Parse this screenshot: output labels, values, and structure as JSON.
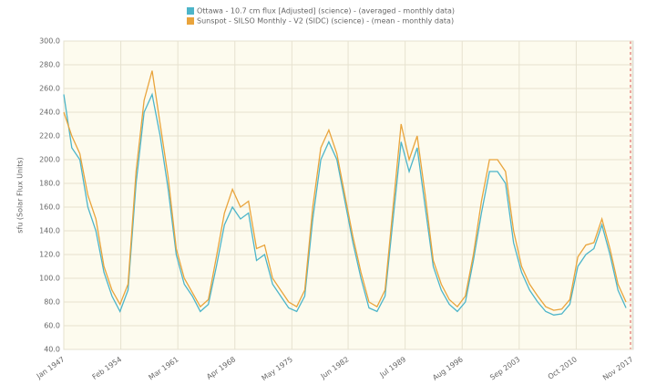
{
  "chart_data": {
    "type": "line",
    "legend_position": "top",
    "ylabel": "sfu (Solar Flux Units)",
    "x": [
      1947,
      1948,
      1949,
      1950,
      1951,
      1952,
      1953,
      1954,
      1955,
      1956,
      1957,
      1958,
      1959,
      1960,
      1961,
      1962,
      1963,
      1964,
      1965,
      1966,
      1967,
      1968,
      1969,
      1970,
      1971,
      1972,
      1973,
      1974,
      1975,
      1976,
      1977,
      1978,
      1979,
      1980,
      1981,
      1982,
      1983,
      1984,
      1985,
      1986,
      1987,
      1988,
      1989,
      1990,
      1991,
      1992,
      1993,
      1994,
      1995,
      1996,
      1997,
      1998,
      1999,
      2000,
      2001,
      2002,
      2003,
      2004,
      2005,
      2006,
      2007,
      2008,
      2009,
      2010,
      2011,
      2012,
      2013,
      2014,
      2015,
      2016,
      2017
    ],
    "series": [
      {
        "name": "Ottawa - 10.7 cm flux [Adjusted] (science) - (averaged - monthly data)",
        "color": "#4db5c9",
        "values": [
          255,
          210,
          200,
          160,
          140,
          105,
          85,
          72,
          90,
          180,
          240,
          255,
          220,
          175,
          120,
          95,
          85,
          72,
          78,
          110,
          145,
          160,
          150,
          155,
          115,
          120,
          95,
          85,
          75,
          72,
          85,
          150,
          200,
          215,
          200,
          165,
          130,
          100,
          75,
          72,
          85,
          150,
          215,
          190,
          210,
          160,
          110,
          90,
          78,
          72,
          80,
          115,
          155,
          190,
          190,
          180,
          130,
          105,
          90,
          80,
          72,
          69,
          70,
          78,
          110,
          120,
          125,
          145,
          120,
          90,
          75
        ]
      },
      {
        "name": "Sunspot - SILSO Monthly - V2 (SIDC) (science) - (mean - monthly data)",
        "color": "#e9a43c",
        "values": [
          240,
          220,
          205,
          170,
          150,
          110,
          90,
          78,
          95,
          190,
          250,
          275,
          230,
          185,
          125,
          100,
          88,
          76,
          82,
          118,
          155,
          175,
          160,
          165,
          125,
          128,
          100,
          90,
          80,
          76,
          90,
          160,
          210,
          225,
          205,
          170,
          135,
          105,
          80,
          76,
          90,
          160,
          230,
          200,
          220,
          170,
          115,
          95,
          82,
          76,
          85,
          120,
          165,
          200,
          200,
          190,
          140,
          110,
          95,
          85,
          76,
          73,
          74,
          82,
          118,
          128,
          130,
          150,
          125,
          95,
          80
        ]
      }
    ],
    "xlim": [
      1947,
      2017.9
    ],
    "xticks": [
      {
        "value": 1947,
        "label": "Jan 1947"
      },
      {
        "value": 1954.1,
        "label": "Feb 1954"
      },
      {
        "value": 1961.2,
        "label": "Mar 1961"
      },
      {
        "value": 1968.3,
        "label": "Apr 1968"
      },
      {
        "value": 1975.4,
        "label": "May 1975"
      },
      {
        "value": 1982.4,
        "label": "Jun 1982"
      },
      {
        "value": 1989.5,
        "label": "Jul 1989"
      },
      {
        "value": 1996.6,
        "label": "Aug 1996"
      },
      {
        "value": 2003.7,
        "label": "Sep 2003"
      },
      {
        "value": 2010.8,
        "label": "Oct 2010"
      },
      {
        "value": 2017.8,
        "label": "Nov 2017"
      }
    ],
    "ylim": [
      40,
      300
    ],
    "yticks": [
      {
        "value": 40,
        "label": "40.0"
      },
      {
        "value": 60,
        "label": "60.0"
      },
      {
        "value": 80,
        "label": "80.0"
      },
      {
        "value": 100,
        "label": "100.0"
      },
      {
        "value": 120,
        "label": "120.0"
      },
      {
        "value": 140,
        "label": "140.0"
      },
      {
        "value": 160,
        "label": "160.0"
      },
      {
        "value": 180,
        "label": "180.0"
      },
      {
        "value": 200,
        "label": "200.0"
      },
      {
        "value": 220,
        "label": "220.0"
      },
      {
        "value": 240,
        "label": "240.0"
      },
      {
        "value": 260,
        "label": "260.0"
      },
      {
        "value": 280,
        "label": "280.0"
      },
      {
        "value": 300,
        "label": "300.0"
      }
    ],
    "grid": true
  }
}
